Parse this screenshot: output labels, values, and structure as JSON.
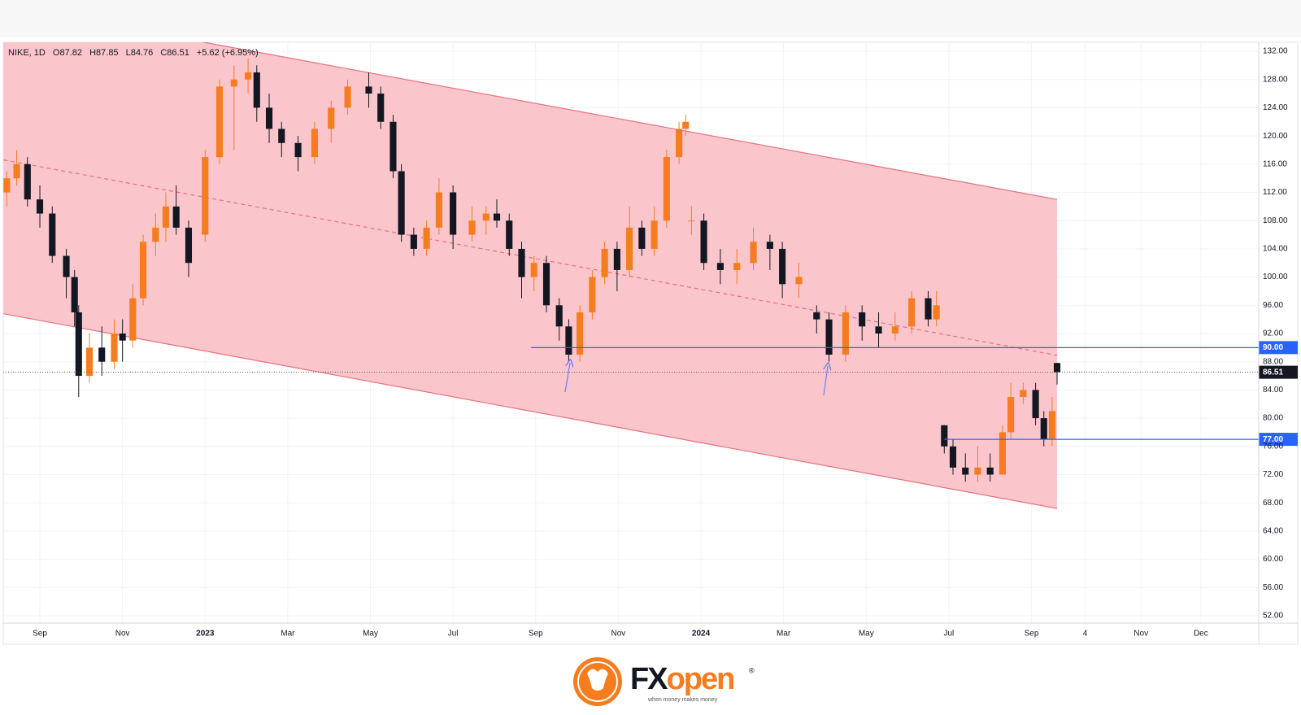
{
  "chart_data": {
    "type": "candlestick",
    "title": "NIKE, 1D",
    "ohlc_readout": [
      "O87.82",
      "H87.85",
      "L84.76",
      "C86.51"
    ],
    "change": "+5.62 (+6.95%)",
    "up_color": "#f57c1f",
    "down_color": "#131722",
    "x": [
      -0.8,
      -0.56,
      -0.3,
      0,
      0.3,
      0.64,
      0.84,
      0.94,
      1.2,
      1.5,
      1.8,
      2.0,
      2.25,
      2.5,
      2.8,
      3.05,
      3.3,
      3.6,
      4.0,
      4.35,
      4.7,
      5.04,
      5.25,
      5.55,
      5.85,
      6.25,
      6.65,
      7.05,
      7.45,
      7.96,
      8.25,
      8.55,
      8.75,
      9.05,
      9.36,
      9.66,
      10.0,
      10.46,
      10.8,
      11.06,
      11.36,
      11.66,
      11.96,
      12.26,
      12.57,
      12.8,
      13.07,
      13.37,
      13.67,
      13.97,
      14.27,
      14.57,
      14.87,
      15.17,
      15.47,
      15.63,
      15.77,
      16.07,
      16.47,
      16.87,
      17.27,
      17.67,
      17.97,
      18.37,
      18.8,
      19.1,
      19.5,
      19.9,
      20.3,
      20.7,
      21.1,
      21.5,
      21.7,
      21.89,
      22.1,
      22.4,
      22.7,
      23.0,
      23.3,
      23.5,
      23.8,
      24.1,
      24.3,
      24.5,
      24.62
    ],
    "open": [
      112,
      114,
      116,
      111,
      109,
      103,
      100,
      95,
      86,
      90,
      88,
      92,
      91,
      97,
      105,
      107,
      110,
      107,
      106,
      117,
      127,
      128,
      129,
      124,
      121,
      119,
      117,
      121,
      124,
      127,
      126,
      122,
      115,
      106,
      104,
      107,
      112,
      106,
      108,
      109,
      108,
      104,
      100,
      102,
      96,
      93,
      89,
      95,
      100,
      104,
      101,
      107,
      104,
      108,
      117,
      121,
      108,
      108,
      102,
      101,
      102,
      105,
      104,
      99,
      95,
      94,
      89,
      95,
      93,
      92,
      93,
      97,
      94,
      79,
      76,
      73,
      72,
      73,
      72,
      78,
      83,
      84,
      80,
      77,
      87.82
    ],
    "high": [
      115,
      118,
      117,
      113,
      110,
      104,
      101,
      96,
      92,
      93,
      94,
      94,
      99,
      106,
      109,
      112,
      113,
      108,
      118,
      128,
      130,
      131,
      130,
      126,
      122,
      120,
      122,
      125,
      128,
      129,
      127,
      123,
      116,
      107,
      108,
      114,
      113,
      110,
      110,
      111,
      109,
      105,
      103,
      103,
      97,
      94,
      96,
      101,
      105,
      105,
      110,
      108,
      110,
      118,
      122,
      123,
      110,
      109,
      104,
      104,
      107,
      106,
      105,
      102,
      96,
      95,
      96,
      96,
      95,
      95,
      98,
      98,
      98,
      79,
      77,
      75,
      76,
      75,
      79,
      85,
      85,
      85,
      81,
      83,
      87.85
    ],
    "low": [
      110,
      113,
      110,
      107,
      102,
      97,
      93,
      83,
      85,
      86,
      87,
      88,
      90,
      96,
      103,
      105,
      106,
      100,
      105,
      116,
      118,
      126,
      122,
      119,
      117,
      115,
      116,
      119,
      123,
      124,
      121,
      114,
      105,
      103,
      103,
      106,
      104,
      105,
      106,
      107,
      103,
      97,
      98,
      95,
      91,
      88,
      88,
      94,
      99,
      98,
      100,
      103,
      103,
      107,
      116,
      120,
      106,
      101,
      99,
      99,
      101,
      101,
      97,
      97,
      92,
      88,
      88,
      91,
      90,
      91,
      92,
      93,
      93,
      75,
      72,
      71,
      71,
      71,
      72,
      77,
      82,
      79,
      76,
      76,
      84.76
    ],
    "close": [
      114,
      116,
      111,
      109,
      103,
      100,
      95,
      86,
      90,
      88,
      92,
      91,
      97,
      105,
      107,
      110,
      107,
      102,
      117,
      127,
      128,
      129,
      124,
      121,
      119,
      117,
      121,
      124,
      127,
      126,
      122,
      115,
      106,
      104,
      107,
      112,
      106,
      108,
      109,
      108,
      104,
      100,
      102,
      96,
      93,
      89,
      95,
      100,
      104,
      101,
      107,
      104,
      108,
      117,
      121,
      122,
      108,
      102,
      101,
      102,
      105,
      104,
      99,
      100,
      94,
      89,
      95,
      93,
      92,
      93,
      97,
      94,
      96,
      76,
      73,
      72,
      73,
      72,
      78,
      83,
      84,
      80,
      77,
      81,
      86.51
    ],
    "xlim": [
      -0.886,
      29.5
    ],
    "ylim": [
      50.96,
      133.27
    ],
    "xticks": [
      {
        "value": 0,
        "label": "Sep"
      },
      {
        "value": 2,
        "label": "Nov"
      },
      {
        "value": 4,
        "label": "2023"
      },
      {
        "value": 6,
        "label": "Mar"
      },
      {
        "value": 8,
        "label": "May"
      },
      {
        "value": 10,
        "label": "Jul"
      },
      {
        "value": 12,
        "label": "Sep"
      },
      {
        "value": 14,
        "label": "Nov"
      },
      {
        "value": 16,
        "label": "2024"
      },
      {
        "value": 18,
        "label": "Mar"
      },
      {
        "value": 20,
        "label": "May"
      },
      {
        "value": 22,
        "label": "Jul"
      },
      {
        "value": 24,
        "label": "Sep"
      },
      {
        "value": 25.3,
        "label": "4"
      },
      {
        "value": 26.65,
        "label": "Nov"
      },
      {
        "value": 28.1,
        "label": "Dec"
      }
    ],
    "yticks": [
      {
        "value": 52,
        "label": "52.00"
      },
      {
        "value": 56,
        "label": "56.00"
      },
      {
        "value": 60,
        "label": "60.00"
      },
      {
        "value": 64,
        "label": "64.00"
      },
      {
        "value": 68,
        "label": "68.00"
      },
      {
        "value": 72,
        "label": "72.00"
      },
      {
        "value": 76,
        "label": "76.00"
      },
      {
        "value": 80,
        "label": "80.00"
      },
      {
        "value": 84,
        "label": "84.00"
      },
      {
        "value": 88,
        "label": "88.00"
      },
      {
        "value": 92,
        "label": "92.00"
      },
      {
        "value": 96,
        "label": "96.00"
      },
      {
        "value": 100,
        "label": "100.00"
      },
      {
        "value": 104,
        "label": "104.00"
      },
      {
        "value": 108,
        "label": "108.00"
      },
      {
        "value": 112,
        "label": "112.00"
      },
      {
        "value": 116,
        "label": "116.00"
      },
      {
        "value": 120,
        "label": "120.00"
      },
      {
        "value": 124,
        "label": "124.00"
      },
      {
        "value": 128,
        "label": "128.00"
      },
      {
        "value": 132,
        "label": "132.00"
      }
    ],
    "grid": true,
    "channel": {
      "upper": {
        "x": [
          -0.88,
          24.62
        ],
        "y": [
          138.5,
          111.0
        ]
      },
      "lower": {
        "x": [
          -0.88,
          24.62
        ],
        "y": [
          94.8,
          67.2
        ]
      },
      "mid": {
        "x": [
          -0.88,
          24.62
        ],
        "y": [
          116.6,
          88.9
        ]
      },
      "fill": "#f9c0c7",
      "line_color": "#e8707a"
    },
    "levels": [
      {
        "value": 90,
        "label": "90.00",
        "x_start": 11.89,
        "color": "#2962ff"
      },
      {
        "value": 77,
        "label": "77.00",
        "x_start": 21.89,
        "color": "#2962ff"
      }
    ],
    "last_price": {
      "value": 86.51,
      "label": "86.51",
      "color": "#131722"
    }
  },
  "branding": {
    "prefix": "FX",
    "suffix": "open",
    "registered": "®",
    "tagline": "when money makes money"
  }
}
